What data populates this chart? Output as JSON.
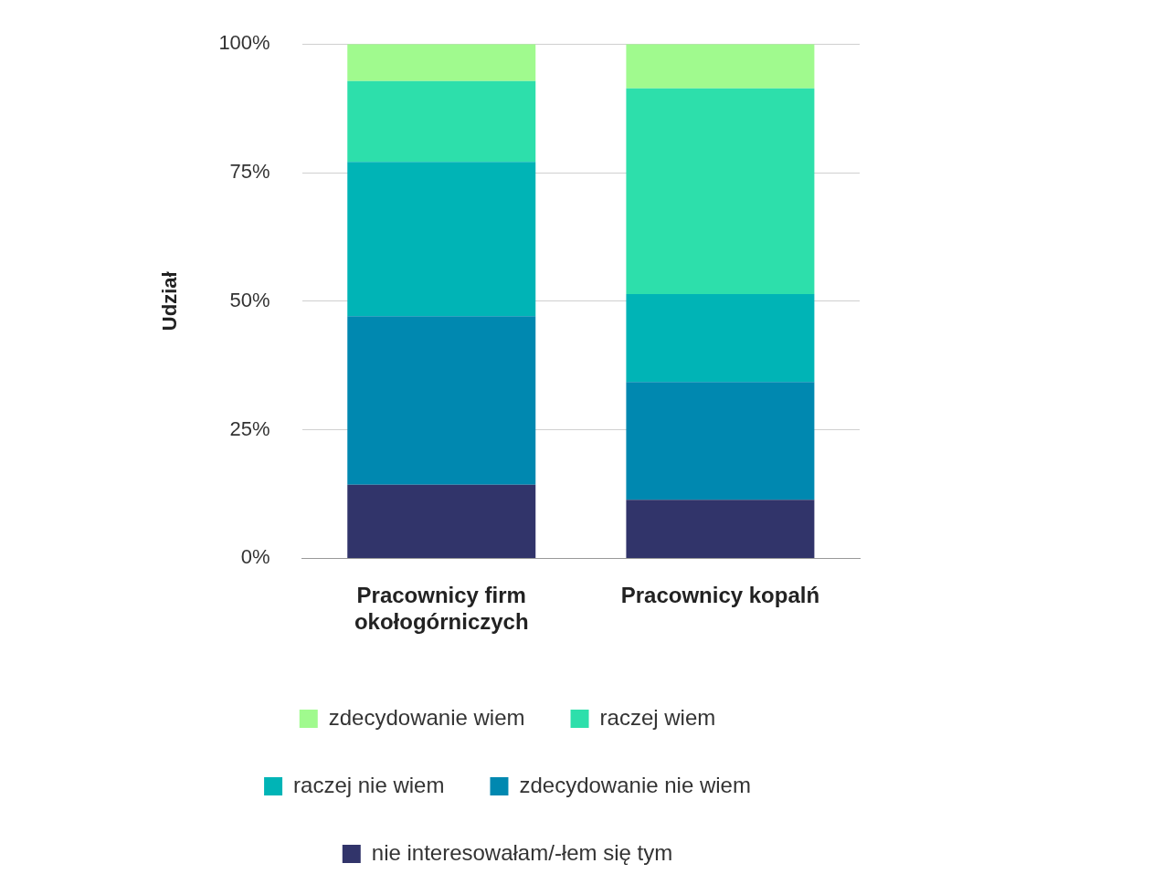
{
  "chart_data": {
    "type": "bar",
    "stacked": true,
    "ylabel": "Udział",
    "categories": [
      "Pracownicy firm okołogórniczych",
      "Pracownicy kopalń"
    ],
    "series": [
      {
        "name": "nie interesowałam/-łem się tym",
        "color": "#31346a",
        "values": [
          14.3,
          11.4
        ]
      },
      {
        "name": "zdecydowanie nie wiem",
        "color": "#0088b0",
        "values": [
          32.8,
          22.9
        ]
      },
      {
        "name": "raczej nie wiem",
        "color": "#00b4b6",
        "values": [
          30.0,
          17.1
        ]
      },
      {
        "name": "raczej wiem",
        "color": "#2ddfab",
        "values": [
          15.7,
          40.0
        ]
      },
      {
        "name": "zdecydowanie wiem",
        "color": "#a0fa8e",
        "values": [
          7.2,
          8.6
        ]
      }
    ],
    "ylim": [
      0,
      100
    ],
    "yticks": [
      {
        "value": 0,
        "label": "0%"
      },
      {
        "value": 25,
        "label": "25%"
      },
      {
        "value": 50,
        "label": "50%"
      },
      {
        "value": 75,
        "label": "75%"
      },
      {
        "value": 100,
        "label": "100%"
      }
    ],
    "grid": "y",
    "legend": "bottom"
  }
}
